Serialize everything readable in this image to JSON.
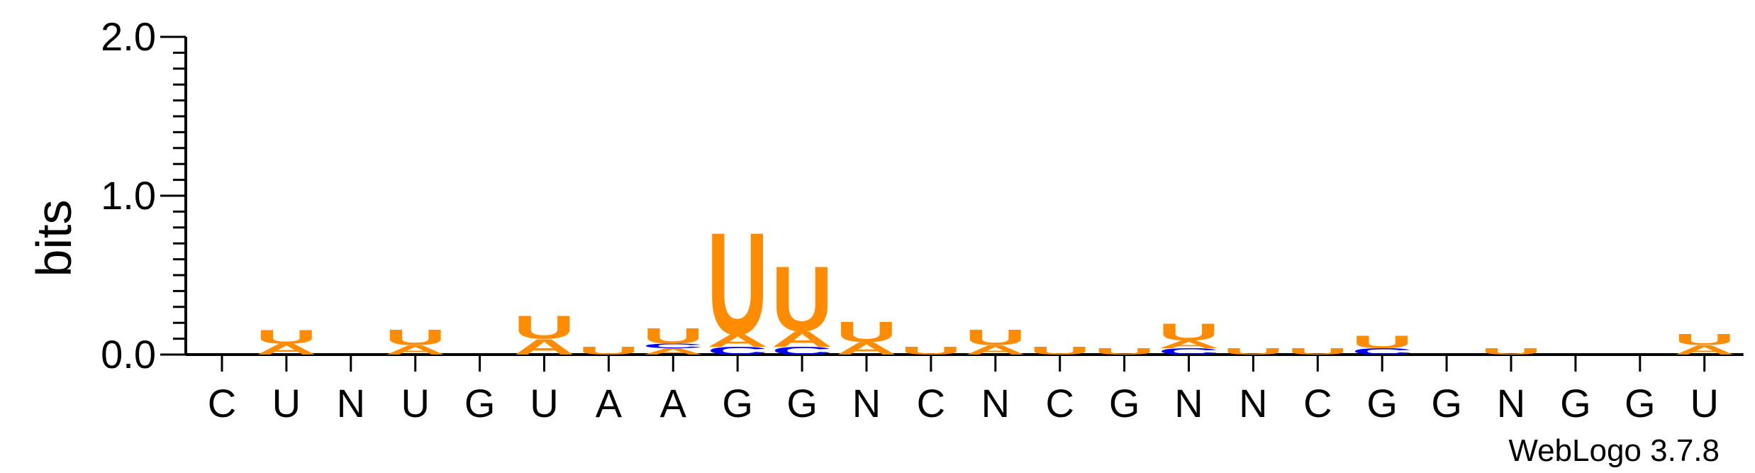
{
  "chart_data": {
    "type": "sequence-logo",
    "ylabel": "bits",
    "ylim": [
      0,
      2.0
    ],
    "yticks": [
      0.0,
      1.0,
      2.0
    ],
    "ytick_labels": [
      "0.0",
      "1.0",
      "2.0"
    ],
    "colors": {
      "U": "#ff8c00",
      "A": "#ff8c00",
      "C": "#0000ff",
      "G": "#0000ff"
    },
    "positions": [
      "C",
      "U",
      "N",
      "U",
      "G",
      "U",
      "A",
      "A",
      "G",
      "G",
      "N",
      "C",
      "N",
      "C",
      "G",
      "N",
      "N",
      "C",
      "G",
      "G",
      "N",
      "G",
      "G",
      "U"
    ],
    "stacks": [
      [],
      [
        [
          "A",
          0.07
        ],
        [
          "U",
          0.09
        ]
      ],
      [],
      [
        [
          "A",
          0.06
        ],
        [
          "U",
          0.1
        ]
      ],
      [],
      [
        [
          "A",
          0.1
        ],
        [
          "U",
          0.15
        ]
      ],
      [
        [
          "U",
          0.05
        ]
      ],
      [
        [
          "A",
          0.04
        ],
        [
          "C",
          0.03
        ],
        [
          "U",
          0.1
        ]
      ],
      [
        [
          "C",
          0.05
        ],
        [
          "A",
          0.08
        ],
        [
          "U",
          0.66
        ]
      ],
      [
        [
          "C",
          0.05
        ],
        [
          "A",
          0.1
        ],
        [
          "U",
          0.42
        ]
      ],
      [
        [
          "A",
          0.08
        ],
        [
          "U",
          0.13
        ]
      ],
      [
        [
          "U",
          0.05
        ]
      ],
      [
        [
          "A",
          0.06
        ],
        [
          "U",
          0.1
        ]
      ],
      [
        [
          "U",
          0.05
        ]
      ],
      [
        [
          "U",
          0.04
        ]
      ],
      [
        [
          "C",
          0.04
        ],
        [
          "A",
          0.05
        ],
        [
          "U",
          0.11
        ]
      ],
      [
        [
          "U",
          0.04
        ]
      ],
      [
        [
          "U",
          0.04
        ]
      ],
      [
        [
          "C",
          0.04
        ],
        [
          "U",
          0.08
        ]
      ],
      [],
      [
        [
          "U",
          0.04
        ]
      ],
      [],
      [],
      [
        [
          "A",
          0.06
        ],
        [
          "U",
          0.07
        ]
      ]
    ],
    "credit": "WebLogo 3.7.8"
  }
}
